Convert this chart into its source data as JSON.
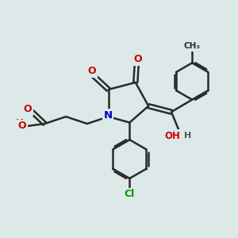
{
  "bg_color": "#dde8e8",
  "bond_color": "#2a2a2a",
  "bond_width": 1.8,
  "atom_colors": {
    "O": "#cc0000",
    "N": "#0000cc",
    "Cl": "#009900",
    "C": "#2a2a2a",
    "H": "#555555"
  }
}
